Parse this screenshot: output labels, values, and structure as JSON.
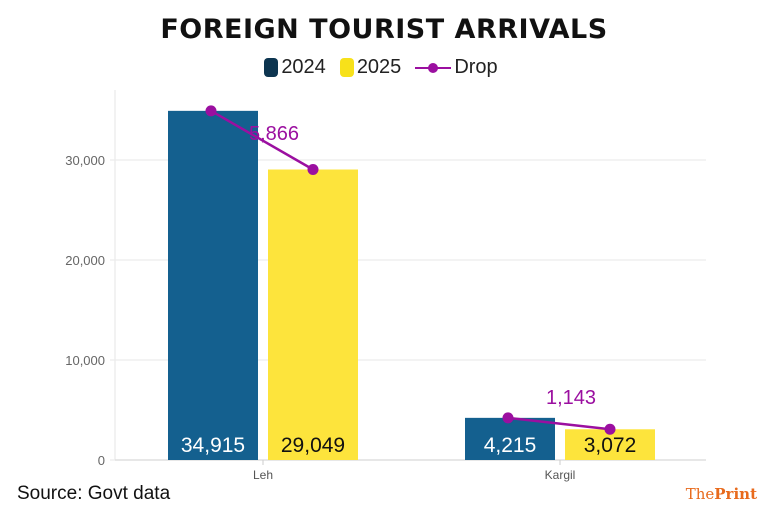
{
  "title": "FOREIGN TOURIST ARRIVALS",
  "legend": [
    {
      "label": "2024",
      "color": "#0d3550"
    },
    {
      "label": "2025",
      "color": "#f7e11a"
    },
    {
      "label": "Drop",
      "color": "#9b0fa0"
    }
  ],
  "footer": {
    "source": "Source: Govt data",
    "brand_the": "The",
    "brand_print": "Print"
  },
  "chart_data": {
    "type": "bar",
    "title": "FOREIGN TOURIST ARRIVALS",
    "categories": [
      "Leh",
      "Kargil"
    ],
    "series": [
      {
        "name": "2024",
        "values": [
          34915,
          4215
        ],
        "labels": [
          "34,915",
          "4,215"
        ],
        "color": "#14608f"
      },
      {
        "name": "2025",
        "values": [
          29049,
          3072
        ],
        "labels": [
          "29,049",
          "3,072"
        ],
        "color": "#fde43c"
      }
    ],
    "drop": {
      "name": "Drop",
      "values": [
        5866,
        1143
      ],
      "labels": [
        "5,866",
        "1,143"
      ],
      "color": "#9b0fa0"
    },
    "yticks": [
      0,
      10000,
      20000,
      30000
    ],
    "ytick_labels": [
      "0",
      "10,000",
      "20,000",
      "30,000"
    ],
    "ylim": [
      0,
      35000
    ],
    "xlabel": "",
    "ylabel": "",
    "grid": true,
    "legend_position": "top"
  }
}
